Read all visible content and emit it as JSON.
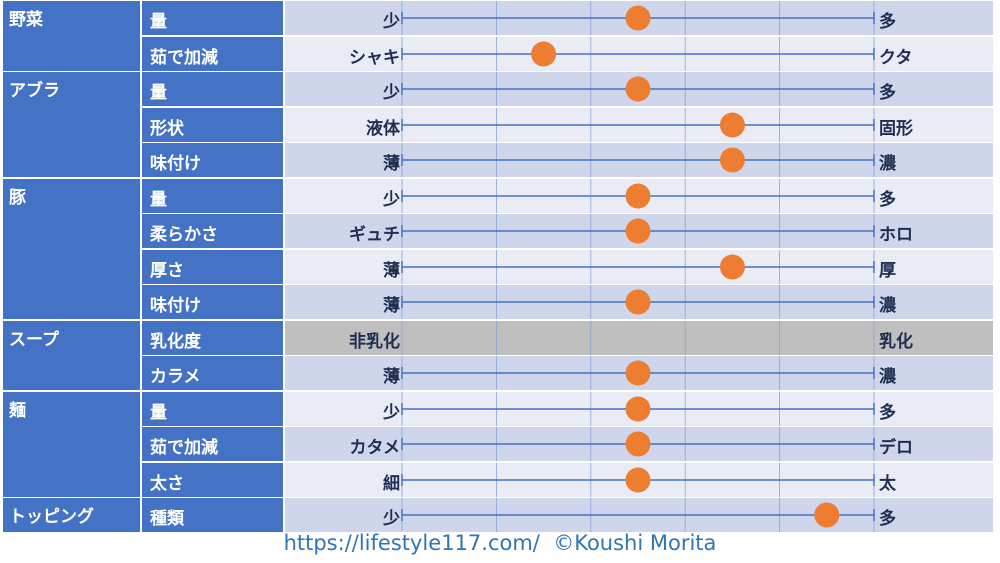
{
  "chart_data": {
    "type": "table",
    "scale_steps": 5,
    "rows": [
      {
        "category": "野菜",
        "item": "量",
        "left": "少",
        "right": "多",
        "value": 2.5
      },
      {
        "category": "",
        "item": "茹で加減",
        "left": "シャキ",
        "right": "クタ",
        "value": 1.5
      },
      {
        "category": "アブラ",
        "item": "量",
        "left": "少",
        "right": "多",
        "value": 2.5
      },
      {
        "category": "",
        "item": "形状",
        "left": "液体",
        "right": "固形",
        "value": 3.5
      },
      {
        "category": "",
        "item": "味付け",
        "left": "薄",
        "right": "濃",
        "value": 3.5
      },
      {
        "category": "豚",
        "item": "量",
        "left": "少",
        "right": "多",
        "value": 2.5
      },
      {
        "category": "",
        "item": "柔らかさ",
        "left": "ギュチ",
        "right": "ホロ",
        "value": 2.5
      },
      {
        "category": "",
        "item": "厚さ",
        "left": "薄",
        "right": "厚",
        "value": 3.5
      },
      {
        "category": "",
        "item": "味付け",
        "left": "薄",
        "right": "濃",
        "value": 2.5
      },
      {
        "category": "スープ",
        "item": "乳化度",
        "left": "非乳化",
        "right": "乳化",
        "value": null
      },
      {
        "category": "",
        "item": "カラメ",
        "left": "薄",
        "right": "濃",
        "value": 2.5
      },
      {
        "category": "麺",
        "item": "量",
        "left": "少",
        "right": "多",
        "value": 2.5
      },
      {
        "category": "",
        "item": "茹で加減",
        "left": "カタメ",
        "right": "デロ",
        "value": 2.5
      },
      {
        "category": "",
        "item": "太さ",
        "left": "細",
        "right": "太",
        "value": 2.5
      },
      {
        "category": "トッピング",
        "item": "種類",
        "left": "少",
        "right": "多",
        "value": 4.5
      }
    ],
    "category_spans": [
      {
        "label": "野菜",
        "start": 0,
        "count": 2
      },
      {
        "label": "アブラ",
        "start": 2,
        "count": 3
      },
      {
        "label": "豚",
        "start": 5,
        "count": 4
      },
      {
        "label": "スープ",
        "start": 9,
        "count": 2
      },
      {
        "label": "麺",
        "start": 11,
        "count": 3
      },
      {
        "label": "トッピング",
        "start": 14,
        "count": 1
      }
    ]
  },
  "footer": "https://lifestyle117.com/  ©Koushi Morita",
  "colors": {
    "header_blue": "#4472C4",
    "row_light": "#E9EBF5",
    "row_dark": "#CFD5EA",
    "row_gray": "#BFBFBF",
    "marker": "#ED7D31",
    "line": "#4472C4",
    "label_text": "#1F2D50",
    "footer_text": "#2E75B6"
  }
}
